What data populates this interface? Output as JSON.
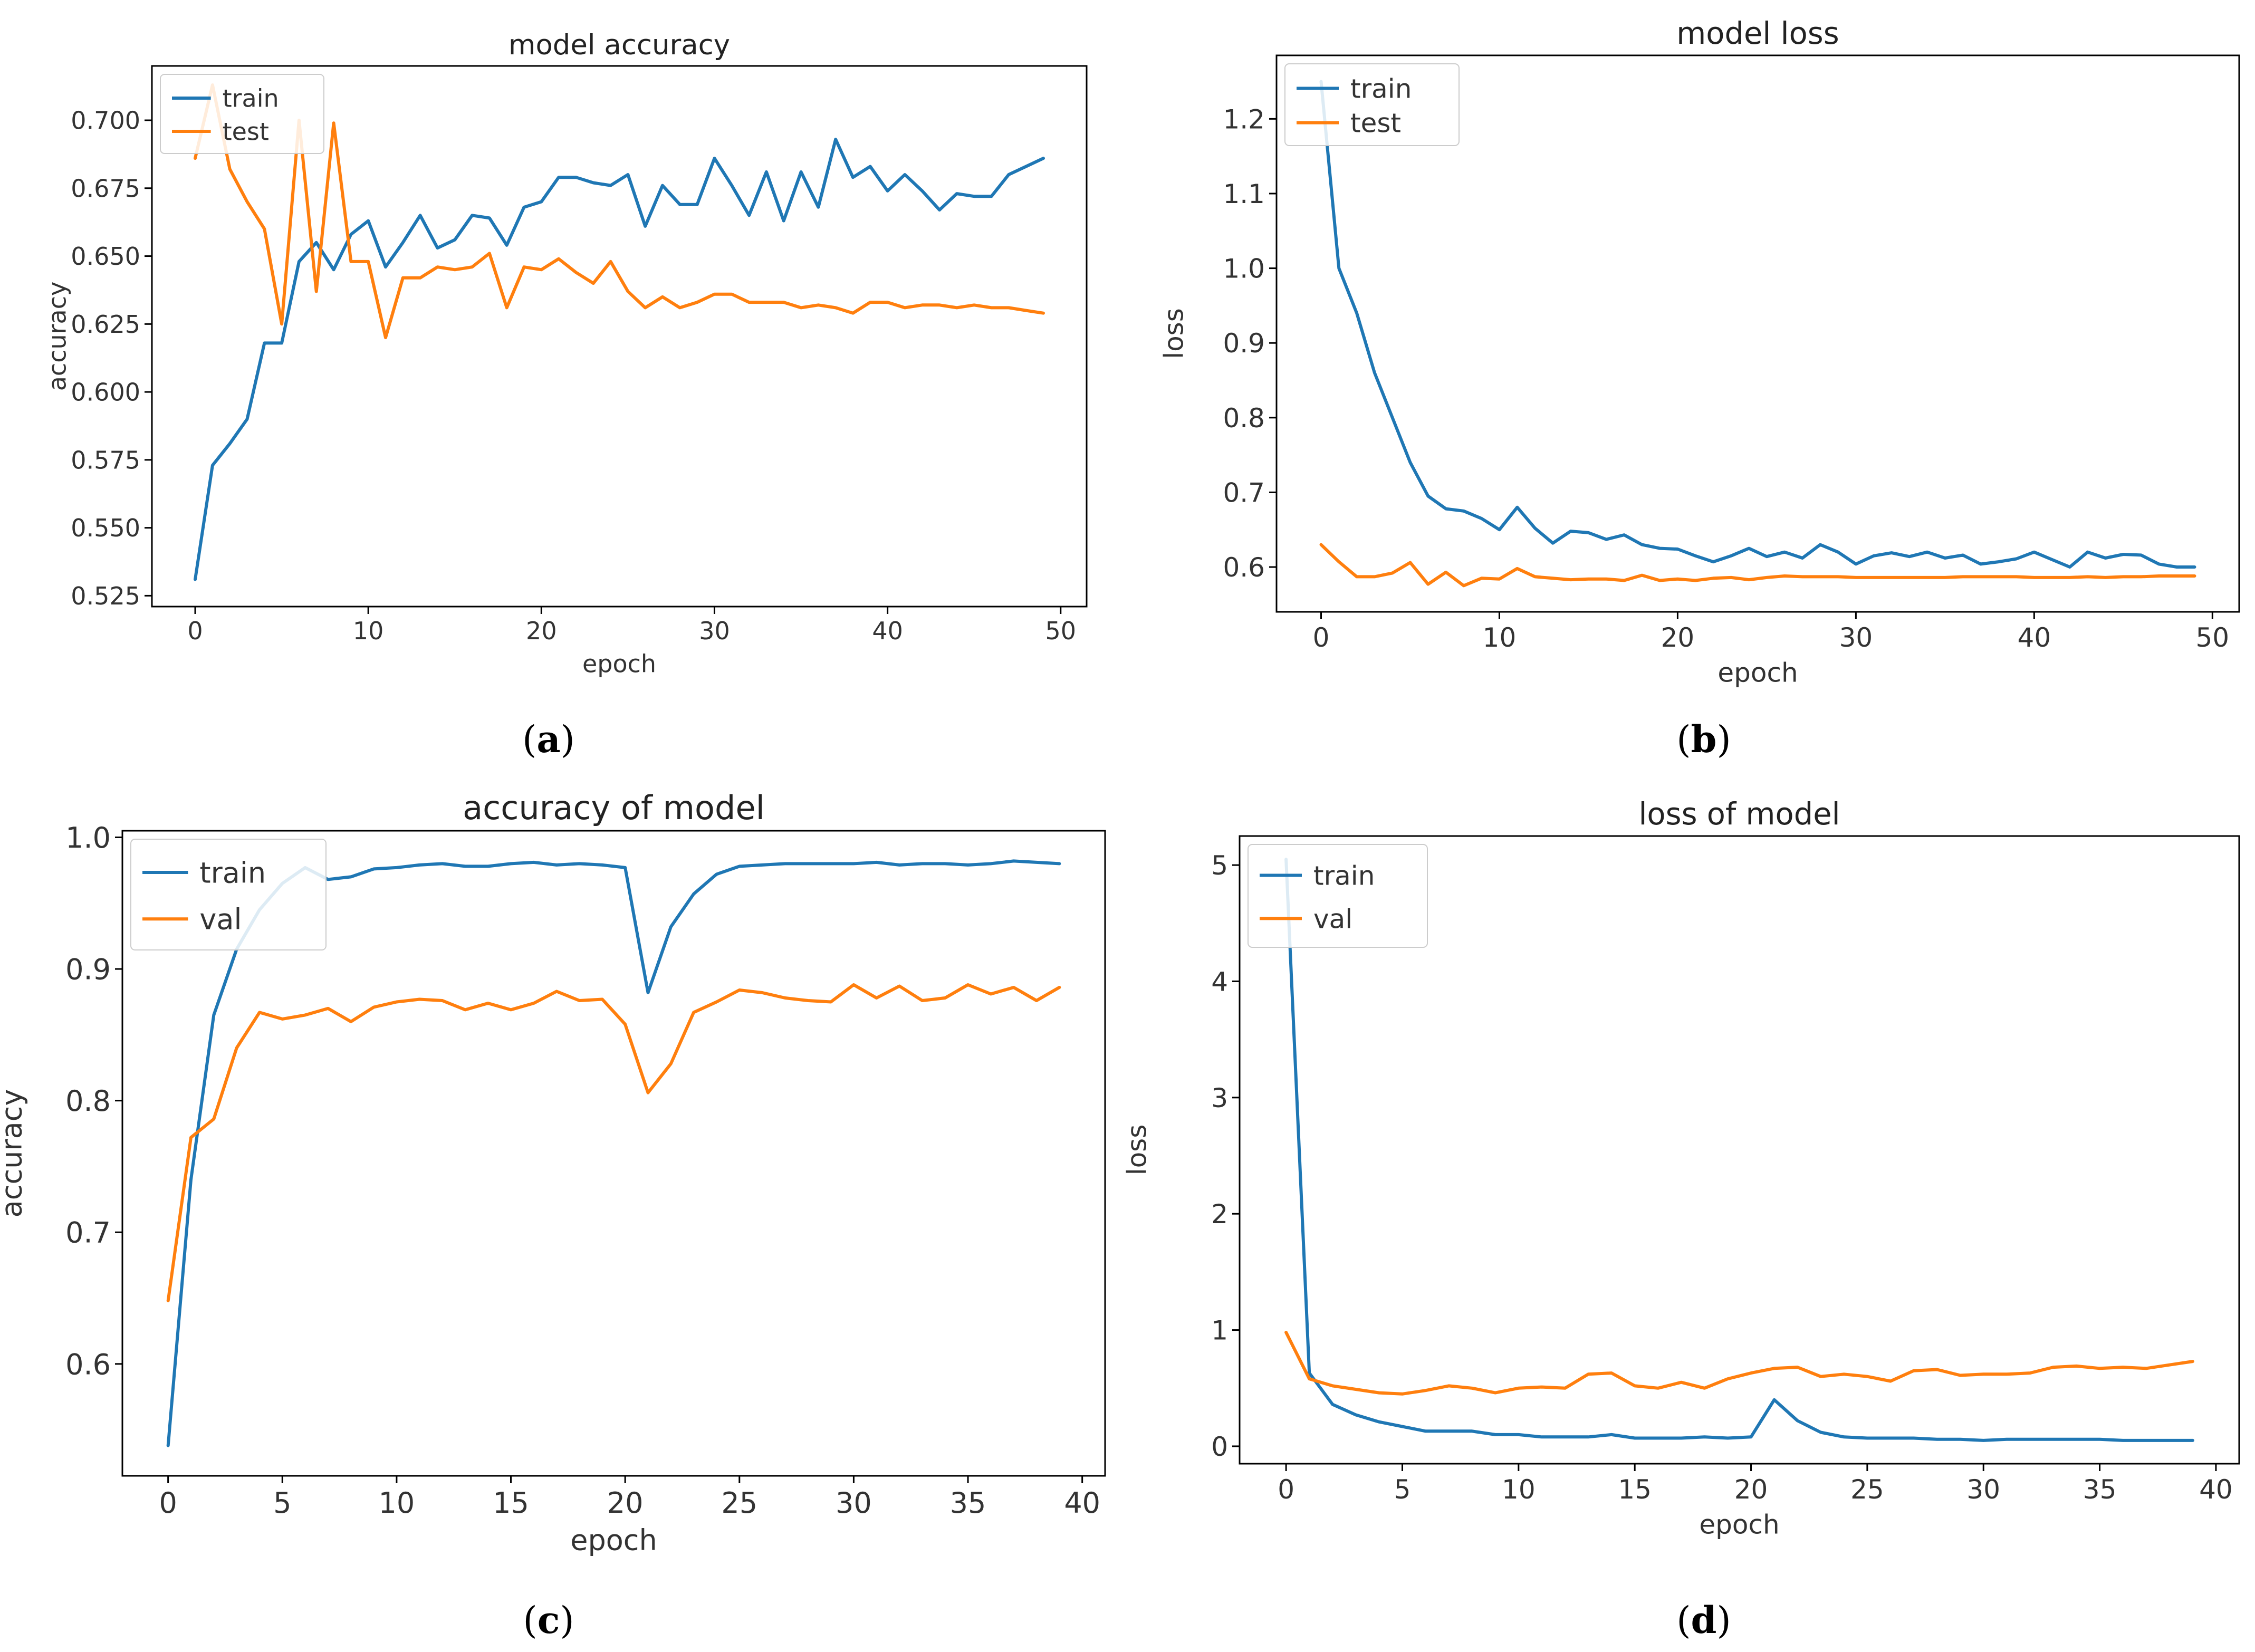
{
  "chart_data": [
    {
      "id": "a",
      "type": "line",
      "panel_label": "a",
      "title": "model accuracy",
      "xlabel": "epoch",
      "ylabel": "accuracy",
      "xlim": [
        -2.5,
        51.5
      ],
      "ylim": [
        0.521,
        0.72
      ],
      "xticks": [
        0,
        10,
        20,
        30,
        40,
        50
      ],
      "yticks": [
        0.525,
        0.55,
        0.575,
        0.6,
        0.625,
        0.65,
        0.675,
        0.7
      ],
      "ytick_labels": [
        "0.525",
        "0.550",
        "0.575",
        "0.600",
        "0.625",
        "0.650",
        "0.675",
        "0.700"
      ],
      "legend": "upper-left",
      "series": [
        {
          "name": "train",
          "color": "#1f77b4",
          "x": [
            0,
            1,
            2,
            3,
            4,
            5,
            6,
            7,
            8,
            9,
            10,
            11,
            12,
            13,
            14,
            15,
            16,
            17,
            18,
            19,
            20,
            21,
            22,
            23,
            24,
            25,
            26,
            27,
            28,
            29,
            30,
            31,
            32,
            33,
            34,
            35,
            36,
            37,
            38,
            39,
            40,
            41,
            42,
            43,
            44,
            45,
            46,
            47,
            48,
            49
          ],
          "values": [
            0.531,
            0.573,
            0.581,
            0.59,
            0.618,
            0.618,
            0.648,
            0.655,
            0.645,
            0.658,
            0.663,
            0.646,
            0.655,
            0.665,
            0.653,
            0.656,
            0.665,
            0.664,
            0.654,
            0.668,
            0.67,
            0.679,
            0.679,
            0.677,
            0.676,
            0.68,
            0.661,
            0.676,
            0.669,
            0.669,
            0.686,
            0.676,
            0.665,
            0.681,
            0.663,
            0.681,
            0.668,
            0.693,
            0.679,
            0.683,
            0.674,
            0.68,
            0.674,
            0.667,
            0.673,
            0.672,
            0.672,
            0.68,
            0.683,
            0.686
          ]
        },
        {
          "name": "test",
          "color": "#ff7f0e",
          "x": [
            0,
            1,
            2,
            3,
            4,
            5,
            6,
            7,
            8,
            9,
            10,
            11,
            12,
            13,
            14,
            15,
            16,
            17,
            18,
            19,
            20,
            21,
            22,
            23,
            24,
            25,
            26,
            27,
            28,
            29,
            30,
            31,
            32,
            33,
            34,
            35,
            36,
            37,
            38,
            39,
            40,
            41,
            42,
            43,
            44,
            45,
            46,
            47,
            48,
            49
          ],
          "values": [
            0.686,
            0.713,
            0.682,
            0.67,
            0.66,
            0.625,
            0.7,
            0.637,
            0.699,
            0.648,
            0.648,
            0.62,
            0.642,
            0.642,
            0.646,
            0.645,
            0.646,
            0.651,
            0.631,
            0.646,
            0.645,
            0.649,
            0.644,
            0.64,
            0.648,
            0.637,
            0.631,
            0.635,
            0.631,
            0.633,
            0.636,
            0.636,
            0.633,
            0.633,
            0.633,
            0.631,
            0.632,
            0.631,
            0.629,
            0.633,
            0.633,
            0.631,
            0.632,
            0.632,
            0.631,
            0.632,
            0.631,
            0.631,
            0.63,
            0.629
          ]
        }
      ]
    },
    {
      "id": "b",
      "type": "line",
      "panel_label": "b",
      "title": "model loss",
      "xlabel": "epoch",
      "ylabel": "loss",
      "xlim": [
        -2.5,
        51.5
      ],
      "ylim": [
        0.54,
        1.285
      ],
      "xticks": [
        0,
        10,
        20,
        30,
        40,
        50
      ],
      "yticks": [
        0.6,
        0.7,
        0.8,
        0.9,
        1.0,
        1.1,
        1.2
      ],
      "ytick_labels": [
        "0.6",
        "0.7",
        "0.8",
        "0.9",
        "1.0",
        "1.1",
        "1.2"
      ],
      "legend": "upper-left",
      "series": [
        {
          "name": "train",
          "color": "#1f77b4",
          "x": [
            0,
            1,
            2,
            3,
            4,
            5,
            6,
            7,
            8,
            9,
            10,
            11,
            12,
            13,
            14,
            15,
            16,
            17,
            18,
            19,
            20,
            21,
            22,
            23,
            24,
            25,
            26,
            27,
            28,
            29,
            30,
            31,
            32,
            33,
            34,
            35,
            36,
            37,
            38,
            39,
            40,
            41,
            42,
            43,
            44,
            45,
            46,
            47,
            48,
            49
          ],
          "values": [
            1.25,
            1.0,
            0.94,
            0.86,
            0.8,
            0.74,
            0.695,
            0.678,
            0.675,
            0.665,
            0.65,
            0.68,
            0.652,
            0.632,
            0.648,
            0.646,
            0.637,
            0.643,
            0.63,
            0.625,
            0.624,
            0.615,
            0.607,
            0.615,
            0.625,
            0.614,
            0.62,
            0.612,
            0.63,
            0.62,
            0.604,
            0.615,
            0.619,
            0.614,
            0.62,
            0.612,
            0.616,
            0.604,
            0.607,
            0.611,
            0.62,
            0.61,
            0.6,
            0.62,
            0.612,
            0.617,
            0.616,
            0.604,
            0.6,
            0.6
          ]
        },
        {
          "name": "test",
          "color": "#ff7f0e",
          "x": [
            0,
            1,
            2,
            3,
            4,
            5,
            6,
            7,
            8,
            9,
            10,
            11,
            12,
            13,
            14,
            15,
            16,
            17,
            18,
            19,
            20,
            21,
            22,
            23,
            24,
            25,
            26,
            27,
            28,
            29,
            30,
            31,
            32,
            33,
            34,
            35,
            36,
            37,
            38,
            39,
            40,
            41,
            42,
            43,
            44,
            45,
            46,
            47,
            48,
            49
          ],
          "values": [
            0.63,
            0.607,
            0.587,
            0.587,
            0.592,
            0.606,
            0.577,
            0.593,
            0.575,
            0.585,
            0.584,
            0.598,
            0.587,
            0.585,
            0.583,
            0.584,
            0.584,
            0.582,
            0.589,
            0.582,
            0.584,
            0.582,
            0.585,
            0.586,
            0.583,
            0.586,
            0.588,
            0.587,
            0.587,
            0.587,
            0.586,
            0.586,
            0.586,
            0.586,
            0.586,
            0.586,
            0.587,
            0.587,
            0.587,
            0.587,
            0.586,
            0.586,
            0.586,
            0.587,
            0.586,
            0.587,
            0.587,
            0.588,
            0.588,
            0.588
          ]
        }
      ]
    },
    {
      "id": "c",
      "type": "line",
      "panel_label": "c",
      "title": "accuracy of model",
      "xlabel": "epoch",
      "ylabel": "accuracy",
      "xlim": [
        -2.0,
        41.0
      ],
      "ylim": [
        0.515,
        1.005
      ],
      "xticks": [
        0,
        5,
        10,
        15,
        20,
        25,
        30,
        35,
        40
      ],
      "yticks": [
        0.6,
        0.7,
        0.8,
        0.9,
        1.0
      ],
      "ytick_labels": [
        "0.6",
        "0.7",
        "0.8",
        "0.9",
        "1.0"
      ],
      "legend": "upper-left",
      "series": [
        {
          "name": "train",
          "color": "#1f77b4",
          "x": [
            0,
            1,
            2,
            3,
            4,
            5,
            6,
            7,
            8,
            9,
            10,
            11,
            12,
            13,
            14,
            15,
            16,
            17,
            18,
            19,
            20,
            21,
            22,
            23,
            24,
            25,
            26,
            27,
            28,
            29,
            30,
            31,
            32,
            33,
            34,
            35,
            36,
            37,
            38,
            39
          ],
          "values": [
            0.538,
            0.74,
            0.865,
            0.915,
            0.945,
            0.965,
            0.977,
            0.968,
            0.97,
            0.976,
            0.977,
            0.979,
            0.98,
            0.978,
            0.978,
            0.98,
            0.981,
            0.979,
            0.98,
            0.979,
            0.977,
            0.882,
            0.932,
            0.957,
            0.972,
            0.978,
            0.979,
            0.98,
            0.98,
            0.98,
            0.98,
            0.981,
            0.979,
            0.98,
            0.98,
            0.979,
            0.98,
            0.982,
            0.981,
            0.98
          ]
        },
        {
          "name": "val",
          "color": "#ff7f0e",
          "x": [
            0,
            1,
            2,
            3,
            4,
            5,
            6,
            7,
            8,
            9,
            10,
            11,
            12,
            13,
            14,
            15,
            16,
            17,
            18,
            19,
            20,
            21,
            22,
            23,
            24,
            25,
            26,
            27,
            28,
            29,
            30,
            31,
            32,
            33,
            34,
            35,
            36,
            37,
            38,
            39
          ],
          "values": [
            0.648,
            0.772,
            0.786,
            0.84,
            0.867,
            0.862,
            0.865,
            0.87,
            0.86,
            0.871,
            0.875,
            0.877,
            0.876,
            0.869,
            0.874,
            0.869,
            0.874,
            0.883,
            0.876,
            0.877,
            0.858,
            0.806,
            0.828,
            0.867,
            0.875,
            0.884,
            0.882,
            0.878,
            0.876,
            0.875,
            0.888,
            0.878,
            0.887,
            0.876,
            0.878,
            0.888,
            0.881,
            0.886,
            0.876,
            0.886
          ]
        }
      ]
    },
    {
      "id": "d",
      "type": "line",
      "panel_label": "d",
      "title": "loss of model",
      "xlabel": "epoch",
      "ylabel": "loss",
      "xlim": [
        -2.0,
        41.0
      ],
      "ylim": [
        -0.15,
        5.25
      ],
      "xticks": [
        0,
        5,
        10,
        15,
        20,
        25,
        30,
        35,
        40
      ],
      "yticks": [
        0,
        1,
        2,
        3,
        4,
        5
      ],
      "ytick_labels": [
        "0",
        "1",
        "2",
        "3",
        "4",
        "5"
      ],
      "legend": "upper-left",
      "series": [
        {
          "name": "train",
          "color": "#1f77b4",
          "x": [
            0,
            1,
            2,
            3,
            4,
            5,
            6,
            7,
            8,
            9,
            10,
            11,
            12,
            13,
            14,
            15,
            16,
            17,
            18,
            19,
            20,
            21,
            22,
            23,
            24,
            25,
            26,
            27,
            28,
            29,
            30,
            31,
            32,
            33,
            34,
            35,
            36,
            37,
            38,
            39
          ],
          "values": [
            5.05,
            0.63,
            0.36,
            0.27,
            0.21,
            0.17,
            0.13,
            0.13,
            0.13,
            0.1,
            0.1,
            0.08,
            0.08,
            0.08,
            0.1,
            0.07,
            0.07,
            0.07,
            0.08,
            0.07,
            0.08,
            0.4,
            0.22,
            0.12,
            0.08,
            0.07,
            0.07,
            0.07,
            0.06,
            0.06,
            0.05,
            0.06,
            0.06,
            0.06,
            0.06,
            0.06,
            0.05,
            0.05,
            0.05,
            0.05
          ]
        },
        {
          "name": "val",
          "color": "#ff7f0e",
          "x": [
            0,
            1,
            2,
            3,
            4,
            5,
            6,
            7,
            8,
            9,
            10,
            11,
            12,
            13,
            14,
            15,
            16,
            17,
            18,
            19,
            20,
            21,
            22,
            23,
            24,
            25,
            26,
            27,
            28,
            29,
            30,
            31,
            32,
            33,
            34,
            35,
            36,
            37,
            38,
            39
          ],
          "values": [
            0.98,
            0.58,
            0.52,
            0.49,
            0.46,
            0.45,
            0.48,
            0.52,
            0.5,
            0.46,
            0.5,
            0.51,
            0.5,
            0.62,
            0.63,
            0.52,
            0.5,
            0.55,
            0.5,
            0.58,
            0.63,
            0.67,
            0.68,
            0.6,
            0.62,
            0.6,
            0.56,
            0.65,
            0.66,
            0.61,
            0.62,
            0.62,
            0.63,
            0.68,
            0.69,
            0.67,
            0.68,
            0.67,
            0.7,
            0.73
          ]
        }
      ]
    }
  ]
}
